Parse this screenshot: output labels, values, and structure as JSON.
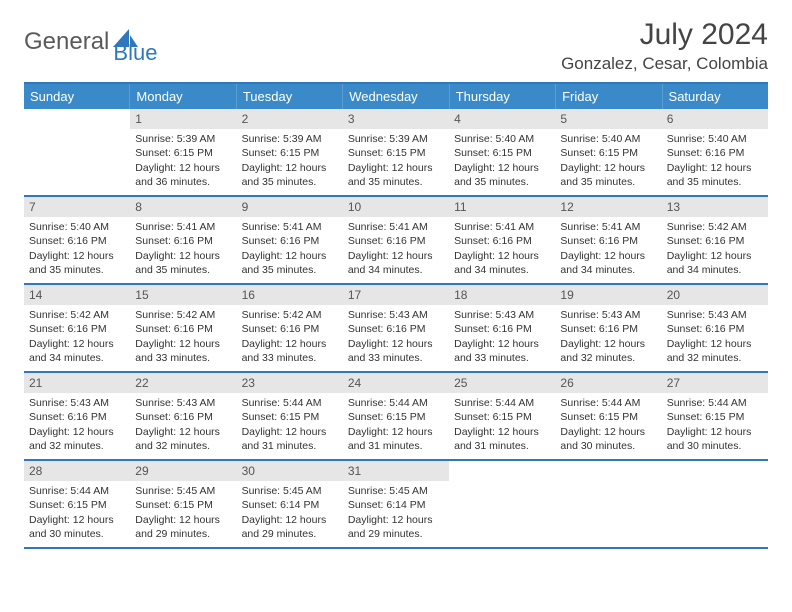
{
  "logo": {
    "text_general": "General",
    "text_blue": "Blue"
  },
  "title": "July 2024",
  "location": "Gonzalez, Cesar, Colombia",
  "colors": {
    "header_bg": "#3a8ac9",
    "border": "#2f78bd",
    "daynum_bg": "#e6e6e6",
    "text": "#333333",
    "logo_gray": "#5a5a5a",
    "logo_blue": "#2f78bd"
  },
  "day_headers": [
    "Sunday",
    "Monday",
    "Tuesday",
    "Wednesday",
    "Thursday",
    "Friday",
    "Saturday"
  ],
  "weeks": [
    [
      {
        "n": "",
        "sunrise": "",
        "sunset": "",
        "daylight": ""
      },
      {
        "n": "1",
        "sunrise": "Sunrise: 5:39 AM",
        "sunset": "Sunset: 6:15 PM",
        "daylight": "Daylight: 12 hours and 36 minutes."
      },
      {
        "n": "2",
        "sunrise": "Sunrise: 5:39 AM",
        "sunset": "Sunset: 6:15 PM",
        "daylight": "Daylight: 12 hours and 35 minutes."
      },
      {
        "n": "3",
        "sunrise": "Sunrise: 5:39 AM",
        "sunset": "Sunset: 6:15 PM",
        "daylight": "Daylight: 12 hours and 35 minutes."
      },
      {
        "n": "4",
        "sunrise": "Sunrise: 5:40 AM",
        "sunset": "Sunset: 6:15 PM",
        "daylight": "Daylight: 12 hours and 35 minutes."
      },
      {
        "n": "5",
        "sunrise": "Sunrise: 5:40 AM",
        "sunset": "Sunset: 6:15 PM",
        "daylight": "Daylight: 12 hours and 35 minutes."
      },
      {
        "n": "6",
        "sunrise": "Sunrise: 5:40 AM",
        "sunset": "Sunset: 6:16 PM",
        "daylight": "Daylight: 12 hours and 35 minutes."
      }
    ],
    [
      {
        "n": "7",
        "sunrise": "Sunrise: 5:40 AM",
        "sunset": "Sunset: 6:16 PM",
        "daylight": "Daylight: 12 hours and 35 minutes."
      },
      {
        "n": "8",
        "sunrise": "Sunrise: 5:41 AM",
        "sunset": "Sunset: 6:16 PM",
        "daylight": "Daylight: 12 hours and 35 minutes."
      },
      {
        "n": "9",
        "sunrise": "Sunrise: 5:41 AM",
        "sunset": "Sunset: 6:16 PM",
        "daylight": "Daylight: 12 hours and 35 minutes."
      },
      {
        "n": "10",
        "sunrise": "Sunrise: 5:41 AM",
        "sunset": "Sunset: 6:16 PM",
        "daylight": "Daylight: 12 hours and 34 minutes."
      },
      {
        "n": "11",
        "sunrise": "Sunrise: 5:41 AM",
        "sunset": "Sunset: 6:16 PM",
        "daylight": "Daylight: 12 hours and 34 minutes."
      },
      {
        "n": "12",
        "sunrise": "Sunrise: 5:41 AM",
        "sunset": "Sunset: 6:16 PM",
        "daylight": "Daylight: 12 hours and 34 minutes."
      },
      {
        "n": "13",
        "sunrise": "Sunrise: 5:42 AM",
        "sunset": "Sunset: 6:16 PM",
        "daylight": "Daylight: 12 hours and 34 minutes."
      }
    ],
    [
      {
        "n": "14",
        "sunrise": "Sunrise: 5:42 AM",
        "sunset": "Sunset: 6:16 PM",
        "daylight": "Daylight: 12 hours and 34 minutes."
      },
      {
        "n": "15",
        "sunrise": "Sunrise: 5:42 AM",
        "sunset": "Sunset: 6:16 PM",
        "daylight": "Daylight: 12 hours and 33 minutes."
      },
      {
        "n": "16",
        "sunrise": "Sunrise: 5:42 AM",
        "sunset": "Sunset: 6:16 PM",
        "daylight": "Daylight: 12 hours and 33 minutes."
      },
      {
        "n": "17",
        "sunrise": "Sunrise: 5:43 AM",
        "sunset": "Sunset: 6:16 PM",
        "daylight": "Daylight: 12 hours and 33 minutes."
      },
      {
        "n": "18",
        "sunrise": "Sunrise: 5:43 AM",
        "sunset": "Sunset: 6:16 PM",
        "daylight": "Daylight: 12 hours and 33 minutes."
      },
      {
        "n": "19",
        "sunrise": "Sunrise: 5:43 AM",
        "sunset": "Sunset: 6:16 PM",
        "daylight": "Daylight: 12 hours and 32 minutes."
      },
      {
        "n": "20",
        "sunrise": "Sunrise: 5:43 AM",
        "sunset": "Sunset: 6:16 PM",
        "daylight": "Daylight: 12 hours and 32 minutes."
      }
    ],
    [
      {
        "n": "21",
        "sunrise": "Sunrise: 5:43 AM",
        "sunset": "Sunset: 6:16 PM",
        "daylight": "Daylight: 12 hours and 32 minutes."
      },
      {
        "n": "22",
        "sunrise": "Sunrise: 5:43 AM",
        "sunset": "Sunset: 6:16 PM",
        "daylight": "Daylight: 12 hours and 32 minutes."
      },
      {
        "n": "23",
        "sunrise": "Sunrise: 5:44 AM",
        "sunset": "Sunset: 6:15 PM",
        "daylight": "Daylight: 12 hours and 31 minutes."
      },
      {
        "n": "24",
        "sunrise": "Sunrise: 5:44 AM",
        "sunset": "Sunset: 6:15 PM",
        "daylight": "Daylight: 12 hours and 31 minutes."
      },
      {
        "n": "25",
        "sunrise": "Sunrise: 5:44 AM",
        "sunset": "Sunset: 6:15 PM",
        "daylight": "Daylight: 12 hours and 31 minutes."
      },
      {
        "n": "26",
        "sunrise": "Sunrise: 5:44 AM",
        "sunset": "Sunset: 6:15 PM",
        "daylight": "Daylight: 12 hours and 30 minutes."
      },
      {
        "n": "27",
        "sunrise": "Sunrise: 5:44 AM",
        "sunset": "Sunset: 6:15 PM",
        "daylight": "Daylight: 12 hours and 30 minutes."
      }
    ],
    [
      {
        "n": "28",
        "sunrise": "Sunrise: 5:44 AM",
        "sunset": "Sunset: 6:15 PM",
        "daylight": "Daylight: 12 hours and 30 minutes."
      },
      {
        "n": "29",
        "sunrise": "Sunrise: 5:45 AM",
        "sunset": "Sunset: 6:15 PM",
        "daylight": "Daylight: 12 hours and 29 minutes."
      },
      {
        "n": "30",
        "sunrise": "Sunrise: 5:45 AM",
        "sunset": "Sunset: 6:14 PM",
        "daylight": "Daylight: 12 hours and 29 minutes."
      },
      {
        "n": "31",
        "sunrise": "Sunrise: 5:45 AM",
        "sunset": "Sunset: 6:14 PM",
        "daylight": "Daylight: 12 hours and 29 minutes."
      },
      {
        "n": "",
        "sunrise": "",
        "sunset": "",
        "daylight": ""
      },
      {
        "n": "",
        "sunrise": "",
        "sunset": "",
        "daylight": ""
      },
      {
        "n": "",
        "sunrise": "",
        "sunset": "",
        "daylight": ""
      }
    ]
  ]
}
